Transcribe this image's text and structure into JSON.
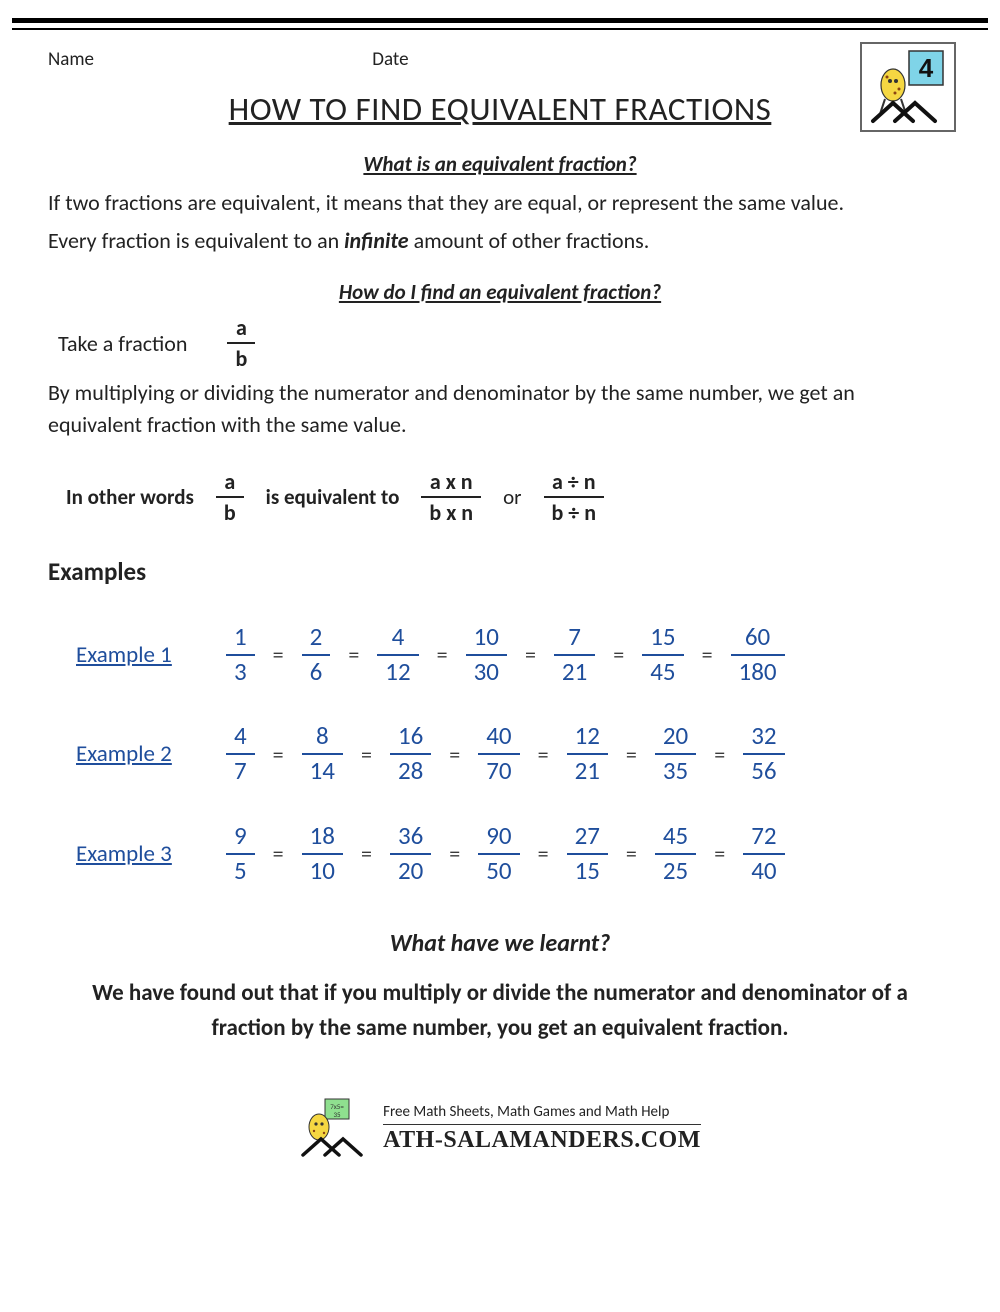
{
  "header": {
    "name_label": "Name",
    "date_label": "Date",
    "badge_number": "4"
  },
  "title": "HOW TO FIND EQUIVALENT FRACTIONS",
  "section1": {
    "question": "What is an equivalent fraction?",
    "line1": "If two fractions are equivalent, it means that they are equal, or represent the same value.",
    "line2a": "Every fraction is equivalent to an ",
    "line2_em": "infinite",
    "line2b": " amount of other fractions."
  },
  "section2": {
    "question": "How do I find an equivalent fraction?",
    "take_label": "Take a fraction",
    "frac_ab": {
      "num": "a",
      "den": "b"
    },
    "explain": "By multiplying or dividing the numerator and denominator by the same number, we get an equivalent fraction with the same value."
  },
  "equiv": {
    "prefix": "In other words",
    "f1": {
      "num": "a",
      "den": "b"
    },
    "mid": "is equivalent to",
    "f2": {
      "num": "a x n",
      "den": "b x n"
    },
    "or": "or",
    "f3": {
      "num": "a ÷ n",
      "den": "b ÷ n"
    }
  },
  "examples_heading": "Examples",
  "examples": [
    {
      "label": "Example 1",
      "fractions": [
        {
          "num": "1",
          "den": "3"
        },
        {
          "num": "2",
          "den": "6"
        },
        {
          "num": "4",
          "den": "12"
        },
        {
          "num": "10",
          "den": "30"
        },
        {
          "num": "7",
          "den": "21"
        },
        {
          "num": "15",
          "den": "45"
        },
        {
          "num": "60",
          "den": "180"
        }
      ]
    },
    {
      "label": "Example 2",
      "fractions": [
        {
          "num": "4",
          "den": "7"
        },
        {
          "num": "8",
          "den": "14"
        },
        {
          "num": "16",
          "den": "28"
        },
        {
          "num": "40",
          "den": "70"
        },
        {
          "num": "12",
          "den": "21"
        },
        {
          "num": "20",
          "den": "35"
        },
        {
          "num": "32",
          "den": "56"
        }
      ]
    },
    {
      "label": "Example 3",
      "fractions": [
        {
          "num": "9",
          "den": "5"
        },
        {
          "num": "18",
          "den": "10"
        },
        {
          "num": "36",
          "den": "20"
        },
        {
          "num": "90",
          "den": "50"
        },
        {
          "num": "27",
          "den": "15"
        },
        {
          "num": "45",
          "den": "25"
        },
        {
          "num": "72",
          "den": "40"
        }
      ]
    }
  ],
  "learnt": {
    "question": "What have we learnt?",
    "body": "We have found out that if you multiply or divide the numerator and denominator of a fraction by the same number, you get an equivalent fraction."
  },
  "footer": {
    "line1": "Free Math Sheets, Math Games and Math Help",
    "line2": "ATH-SALAMANDERS.COM"
  },
  "colors": {
    "accent_blue": "#1f4e9c",
    "text": "#222222",
    "rule": "#000000"
  },
  "typography": {
    "title_fontsize": 33,
    "body_fontsize": 22,
    "example_fraction_fontsize": 25
  }
}
